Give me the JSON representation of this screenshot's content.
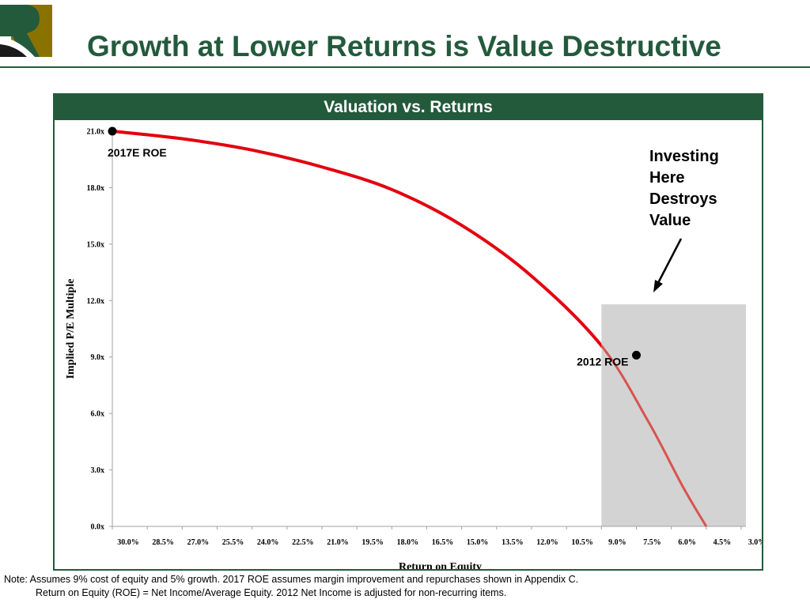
{
  "slide": {
    "title": "Growth at Lower Returns is Value Destructive",
    "panel_title": "Valuation vs. Returns",
    "footnote_line1": "Note: Assumes 9% cost of equity and 5% growth. 2017 ROE assumes margin improvement and repurchases shown in Appendix C.",
    "footnote_line2": "Return on Equity (ROE) = Net Income/Average Equity. 2012 Net Income is adjusted for non-recurring items."
  },
  "colors": {
    "brand_green": "#235a3c",
    "curve_red": "#e3000f",
    "curve_red_light": "#d9534f",
    "shade_gray": "#d3d3d3",
    "logo_gold": "#8a7200"
  },
  "chart_data": {
    "type": "line",
    "title": "Valuation vs. Returns",
    "xlabel": "Return on Equity",
    "ylabel": "Implied P/E Multiple",
    "x_ticks": [
      "30.0%",
      "28.5%",
      "27.0%",
      "25.5%",
      "24.0%",
      "22.5%",
      "21.0%",
      "19.5%",
      "18.0%",
      "16.5%",
      "15.0%",
      "13.5%",
      "12.0%",
      "10.5%",
      "9.0%",
      "7.5%",
      "6.0%",
      "4.5%",
      "3.0%"
    ],
    "y_ticks": [
      "0.0x",
      "3.0x",
      "6.0x",
      "9.0x",
      "12.0x",
      "15.0x",
      "18.0x",
      "21.0x"
    ],
    "xlim": [
      30.0,
      3.0
    ],
    "ylim": [
      0,
      21
    ],
    "series": [
      {
        "points": [
          {
            "x": 30.0,
            "y": 21.0
          },
          {
            "x": 27.0,
            "y": 20.6
          },
          {
            "x": 24.0,
            "y": 20.0
          },
          {
            "x": 21.0,
            "y": 19.1
          },
          {
            "x": 18.0,
            "y": 17.9
          },
          {
            "x": 15.0,
            "y": 16.0
          },
          {
            "x": 12.0,
            "y": 13.3
          },
          {
            "x": 9.0,
            "y": 9.6
          },
          {
            "x": 7.0,
            "y": 5.6
          },
          {
            "x": 5.5,
            "y": 2.1
          },
          {
            "x": 4.5,
            "y": 0.0
          }
        ]
      }
    ],
    "shaded_region": {
      "x_from": 9.0,
      "x_to": 3.0,
      "y_top": 11.8
    },
    "markers": [
      {
        "label": "2017E ROE",
        "x": 30.0,
        "y": 21.0
      },
      {
        "label": "2012 ROE",
        "x": 7.5,
        "y": 9.1
      }
    ],
    "annotation": {
      "lines": [
        "Investing",
        "Here",
        "Destroys",
        "Value"
      ]
    },
    "grid": false
  }
}
